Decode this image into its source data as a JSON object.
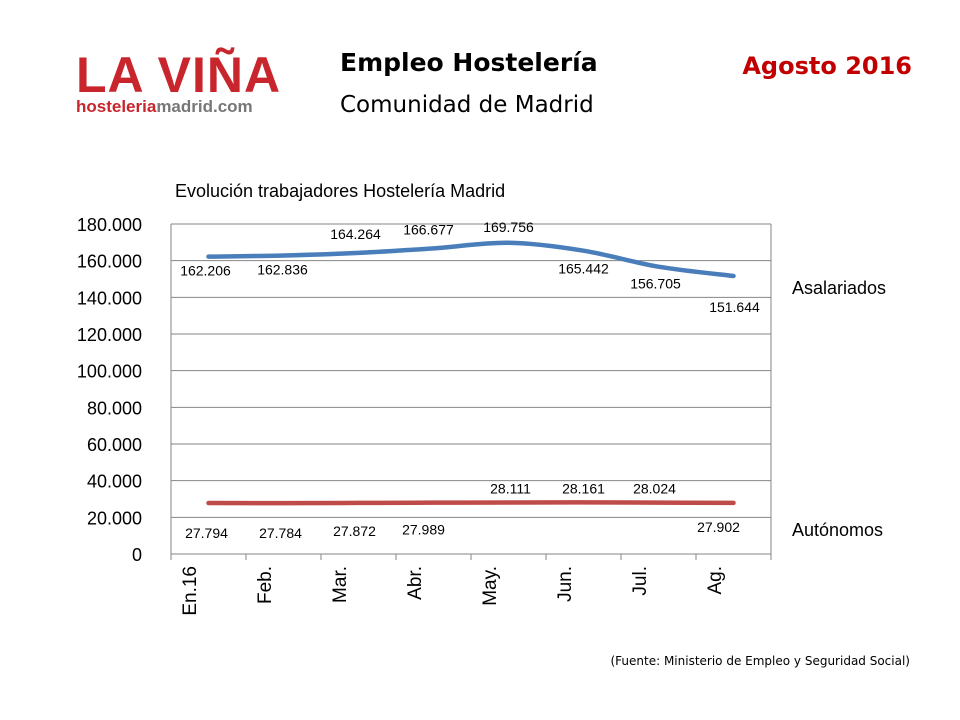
{
  "logo": {
    "name": "LA VIÑA",
    "url_part1": "hosteleria",
    "url_part2": "madrid.com"
  },
  "header": {
    "title": "Empleo Hostelería",
    "subtitle": "Comunidad de Madrid",
    "date": "Agosto 2016"
  },
  "source": "(Fuente: Ministerio de Empleo y Seguridad Social)",
  "chart_data": {
    "type": "line",
    "title": "Evolución trabajadores Hostelería Madrid",
    "categories": [
      "En.16",
      "Feb.",
      "Mar.",
      "Abr.",
      "May.",
      "Jun.",
      "Jul.",
      "Ag."
    ],
    "ylim": [
      0,
      180000
    ],
    "yticks": [
      0,
      20000,
      40000,
      60000,
      80000,
      100000,
      120000,
      140000,
      160000,
      180000
    ],
    "ytick_labels": [
      "0",
      "20.000",
      "40.000",
      "60.000",
      "80.000",
      "100.000",
      "120.000",
      "140.000",
      "160.000",
      "180.000"
    ],
    "grid": true,
    "legend": "right",
    "series": [
      {
        "name": "Asalariados",
        "color": "#4a7ebb",
        "values": [
          162206,
          162836,
          164264,
          166677,
          169756,
          165442,
          156705,
          151644
        ],
        "labels": [
          "162.206",
          "162.836",
          "164.264",
          "166.677",
          "169.756",
          "165.442",
          "156.705",
          "151.644"
        ]
      },
      {
        "name": "Autónomos",
        "color": "#be4b48",
        "values": [
          27794,
          27784,
          27872,
          27989,
          28111,
          28161,
          28024,
          27902
        ],
        "labels": [
          "27.794",
          "27.784",
          "27.872",
          "27.989",
          "28.111",
          "28.161",
          "28.024",
          "27.902"
        ]
      }
    ]
  }
}
